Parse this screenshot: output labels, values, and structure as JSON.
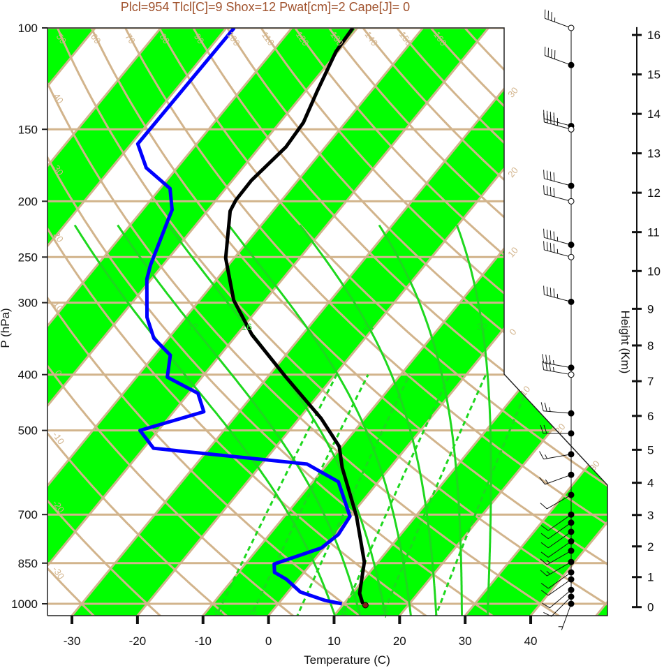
{
  "colors": {
    "title": "#a0522d",
    "band_green": "#00ff00",
    "tan_lines": "#d2b48c",
    "moist_adiabat": "#1ed81e",
    "temperature": "#000000",
    "dewpoint": "#0000ff",
    "parcel_start": "#8b1a1a"
  },
  "chart_data": {
    "type": "line",
    "subtype": "skew-t log-p",
    "title": "Plcl=954 Tlcl[C]=9 Shox=12 Pwat[cm]=2 Cape[J]= 0",
    "xlabel": "Temperature (C)",
    "ylabel": "P (hPa)",
    "y2label": "Height (Km)",
    "xlim": [
      -33.7,
      51.8
    ],
    "ylim": [
      1050,
      100
    ],
    "x_ticks": [
      "-30",
      "-20",
      "-10",
      "0",
      "10",
      "20",
      "30",
      "40"
    ],
    "pressure_ticks": [
      "100",
      "150",
      "200",
      "250",
      "300",
      "400",
      "500",
      "700",
      "850",
      "1000"
    ],
    "height_ticks": [
      "0",
      "1",
      "2",
      "3",
      "4",
      "5",
      "6",
      "7",
      "8",
      "9",
      "10",
      "11",
      "12",
      "13",
      "14",
      "15",
      "16"
    ],
    "isotherm_band_step_c": 10,
    "isotherm_labels": [
      {
        "t": -30,
        "text": "30"
      },
      {
        "t": -20,
        "text": "20"
      },
      {
        "t": -10,
        "text": "10"
      },
      {
        "t": 0,
        "text": "0"
      },
      {
        "t": 10,
        "text": "10"
      },
      {
        "t": 20,
        "text": "20"
      },
      {
        "t": 30,
        "text": "30"
      }
    ],
    "dry_adiabats_c": [
      -30,
      -20,
      -10,
      0,
      10,
      20,
      30,
      40,
      50,
      60,
      70,
      80,
      90,
      100,
      110,
      120,
      130,
      140,
      150,
      160,
      170
    ],
    "dry_adiabat_left_labels": [
      {
        "theta": 40,
        "text": "40"
      },
      {
        "theta": 30,
        "text": "30"
      },
      {
        "theta": 20,
        "text": "20"
      },
      {
        "theta": 10,
        "text": "10"
      },
      {
        "theta": 0,
        "text": "0"
      },
      {
        "theta": -10,
        "text": "-10"
      },
      {
        "theta": -20,
        "text": "-20"
      },
      {
        "theta": -30,
        "text": "-30"
      }
    ],
    "dry_adiabat_top_labels": [
      {
        "theta": 50,
        "text": "50"
      },
      {
        "theta": 60,
        "text": "60"
      },
      {
        "theta": 70,
        "text": "70"
      },
      {
        "theta": 80,
        "text": "80"
      },
      {
        "theta": 90,
        "text": "90"
      },
      {
        "theta": 100,
        "text": "100"
      },
      {
        "theta": 110,
        "text": "110"
      },
      {
        "theta": 120,
        "text": "120"
      },
      {
        "theta": 130,
        "text": "130"
      },
      {
        "theta": 140,
        "text": "140"
      },
      {
        "theta": 150,
        "text": "150"
      },
      {
        "theta": 160,
        "text": "160"
      }
    ],
    "moist_adiabats_c": [
      8,
      12,
      16,
      20,
      24,
      28,
      32
    ],
    "moist_adiabat_labels": [
      {
        "theta_w": 12,
        "text": "12"
      },
      {
        "theta_w": 16,
        "text": "16"
      },
      {
        "theta_w": 24,
        "text": "24"
      },
      {
        "theta_w": 32,
        "text": "32"
      }
    ],
    "mixing_ratios_gkg": [
      2,
      3,
      5,
      8,
      12,
      20
    ],
    "mixing_ratio_labels": [
      {
        "w": 2,
        "text": "2"
      },
      {
        "w": 3,
        "text": "3"
      },
      {
        "w": 8,
        "text": "8"
      },
      {
        "w": 12,
        "text": "12"
      }
    ],
    "temperature_profile": [
      {
        "p": 1000,
        "t": 12.9
      },
      {
        "p": 959,
        "t": 11.1
      },
      {
        "p": 846,
        "t": 7.9
      },
      {
        "p": 705,
        "t": 1.0
      },
      {
        "p": 580,
        "t": -7.3
      },
      {
        "p": 533,
        "t": -10.4
      },
      {
        "p": 477,
        "t": -16.6
      },
      {
        "p": 404,
        "t": -27.2
      },
      {
        "p": 341,
        "t": -37.7
      },
      {
        "p": 297,
        "t": -44.8
      },
      {
        "p": 251,
        "t": -51.3
      },
      {
        "p": 208,
        "t": -56.5
      },
      {
        "p": 199,
        "t": -57.0
      },
      {
        "p": 184,
        "t": -57.1
      },
      {
        "p": 161,
        "t": -56.0
      },
      {
        "p": 146,
        "t": -56.4
      },
      {
        "p": 129,
        "t": -58.2
      },
      {
        "p": 110,
        "t": -60.3
      },
      {
        "p": 100,
        "t": -60.7
      }
    ],
    "dewpoint_profile": [
      {
        "p": 1000,
        "t": 9.7
      },
      {
        "p": 986,
        "t": 6.6
      },
      {
        "p": 954,
        "t": 1.9
      },
      {
        "p": 907,
        "t": -1.8
      },
      {
        "p": 882,
        "t": -4.5
      },
      {
        "p": 853,
        "t": -5.6
      },
      {
        "p": 800,
        "t": -0.4
      },
      {
        "p": 758,
        "t": 0.5
      },
      {
        "p": 705,
        "t": 0.0
      },
      {
        "p": 614,
        "t": -6.1
      },
      {
        "p": 572,
        "t": -13.1
      },
      {
        "p": 537,
        "t": -38.5
      },
      {
        "p": 500,
        "t": -42.8
      },
      {
        "p": 464,
        "t": -35.4
      },
      {
        "p": 431,
        "t": -38.6
      },
      {
        "p": 404,
        "t": -45.3
      },
      {
        "p": 370,
        "t": -47.6
      },
      {
        "p": 346,
        "t": -52.2
      },
      {
        "p": 318,
        "t": -55.9
      },
      {
        "p": 273,
        "t": -60.7
      },
      {
        "p": 258,
        "t": -61.9
      },
      {
        "p": 215,
        "t": -64.9
      },
      {
        "p": 207,
        "t": -65.5
      },
      {
        "p": 190,
        "t": -68.5
      },
      {
        "p": 175,
        "t": -74.7
      },
      {
        "p": 159,
        "t": -79.0
      },
      {
        "p": 100,
        "t": -78.8
      }
    ],
    "parcel_start": {
      "p": 1000,
      "t": 13.3
    },
    "winds": [
      {
        "p": 100,
        "dir": 290,
        "spd": 35,
        "marker": "open"
      },
      {
        "p": 116,
        "dir": 290,
        "spd": 40,
        "marker": "filled"
      },
      {
        "p": 148,
        "dir": 285,
        "spd": 45,
        "marker": "filled"
      },
      {
        "p": 150,
        "dir": 285,
        "spd": 45,
        "marker": "open"
      },
      {
        "p": 188,
        "dir": 285,
        "spd": 40,
        "marker": "filled"
      },
      {
        "p": 200,
        "dir": 285,
        "spd": 40,
        "marker": "open"
      },
      {
        "p": 238,
        "dir": 285,
        "spd": 45,
        "marker": "filled"
      },
      {
        "p": 250,
        "dir": 285,
        "spd": 45,
        "marker": "open"
      },
      {
        "p": 299,
        "dir": 285,
        "spd": 45,
        "marker": "filled"
      },
      {
        "p": 389,
        "dir": 280,
        "spd": 35,
        "marker": "filled"
      },
      {
        "p": 400,
        "dir": 280,
        "spd": 35,
        "marker": "open"
      },
      {
        "p": 467,
        "dir": 275,
        "spd": 25,
        "marker": "filled"
      },
      {
        "p": 506,
        "dir": 270,
        "spd": 20,
        "marker": "filled"
      },
      {
        "p": 550,
        "dir": 260,
        "spd": 15,
        "marker": "filled"
      },
      {
        "p": 597,
        "dir": 250,
        "spd": 15,
        "marker": "filled"
      },
      {
        "p": 647,
        "dir": 240,
        "spd": 10,
        "marker": "filled"
      },
      {
        "p": 700,
        "dir": 235,
        "spd": 10,
        "marker": "filled"
      },
      {
        "p": 723,
        "dir": 235,
        "spd": 10,
        "marker": "filled"
      },
      {
        "p": 750,
        "dir": 235,
        "spd": 10,
        "marker": "filled"
      },
      {
        "p": 779,
        "dir": 235,
        "spd": 10,
        "marker": "filled"
      },
      {
        "p": 809,
        "dir": 240,
        "spd": 15,
        "marker": "filled"
      },
      {
        "p": 846,
        "dir": 240,
        "spd": 15,
        "marker": "filled"
      },
      {
        "p": 882,
        "dir": 235,
        "spd": 10,
        "marker": "filled"
      },
      {
        "p": 907,
        "dir": 235,
        "spd": 10,
        "marker": "filled"
      },
      {
        "p": 946,
        "dir": 230,
        "spd": 10,
        "marker": "filled"
      },
      {
        "p": 972,
        "dir": 225,
        "spd": 10,
        "marker": "filled"
      },
      {
        "p": 1000,
        "dir": 200,
        "spd": 5,
        "marker": "filled"
      }
    ]
  }
}
